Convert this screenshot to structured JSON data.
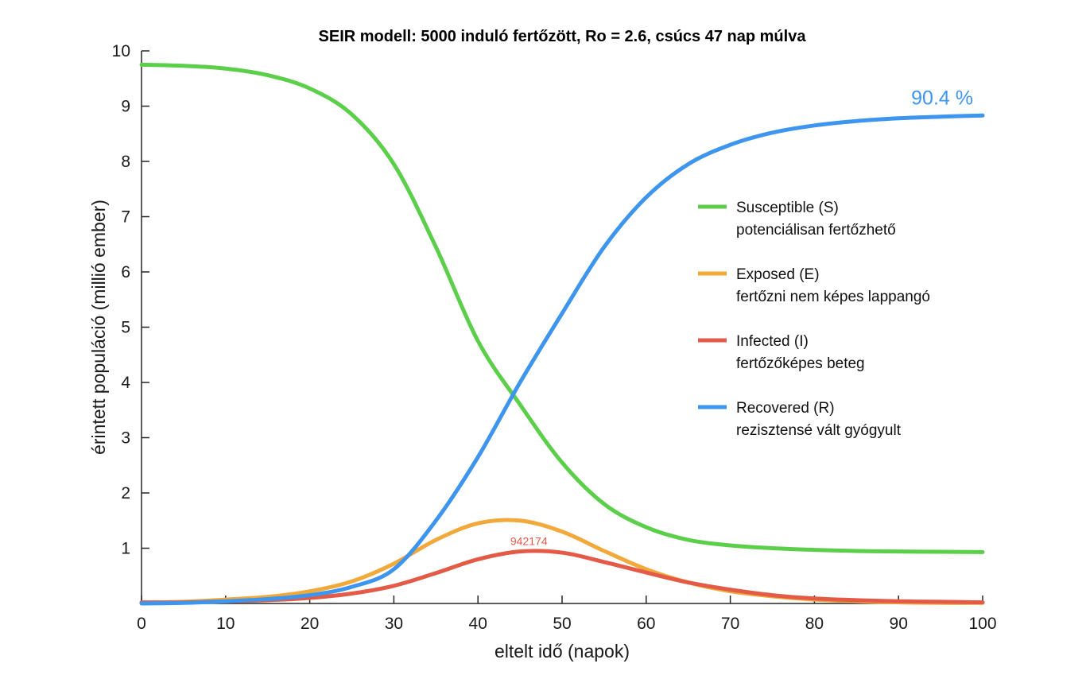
{
  "chart_data": {
    "type": "line",
    "title": "SEIR modell: 5000 induló fertőzött, Ro = 2.6, csúcs 47 nap múlva",
    "xlabel": "eltelt idő (napok)",
    "ylabel": "érintett populáció (millió ember)",
    "xlim": [
      0,
      100
    ],
    "ylim": [
      0,
      10
    ],
    "x_ticks": [
      "0",
      "10",
      "20",
      "30",
      "40",
      "50",
      "60",
      "70",
      "80",
      "90",
      "100"
    ],
    "y_ticks": [
      "1",
      "2",
      "3",
      "4",
      "5",
      "6",
      "7",
      "8",
      "9",
      "10"
    ],
    "grid": false,
    "legend_position": "right",
    "x": [
      0,
      5,
      10,
      15,
      20,
      25,
      30,
      35,
      40,
      45,
      50,
      55,
      60,
      65,
      70,
      75,
      80,
      85,
      90,
      95,
      100
    ],
    "series": [
      {
        "name": "Susceptible (S)",
        "description": "potenciálisan fertőzhető",
        "color": "#5ccf4a",
        "values": [
          9.75,
          9.73,
          9.68,
          9.56,
          9.32,
          8.85,
          7.95,
          6.45,
          4.75,
          3.6,
          2.55,
          1.8,
          1.38,
          1.15,
          1.05,
          1.0,
          0.97,
          0.95,
          0.94,
          0.935,
          0.93
        ]
      },
      {
        "name": "Exposed (E)",
        "description": "fertőzni nem képes lappangó",
        "color": "#f2a93b",
        "values": [
          0.01,
          0.03,
          0.07,
          0.12,
          0.22,
          0.4,
          0.72,
          1.15,
          1.45,
          1.5,
          1.3,
          0.95,
          0.62,
          0.38,
          0.22,
          0.13,
          0.07,
          0.04,
          0.02,
          0.01,
          0.01
        ]
      },
      {
        "name": "Infected (I)",
        "description": "fertőzőképes beteg",
        "color": "#e35b47",
        "values": [
          0.02,
          0.02,
          0.04,
          0.06,
          0.1,
          0.18,
          0.32,
          0.55,
          0.8,
          0.94,
          0.92,
          0.75,
          0.56,
          0.38,
          0.25,
          0.15,
          0.09,
          0.06,
          0.04,
          0.03,
          0.02
        ]
      },
      {
        "name": "Recovered (R)",
        "description": "rezisztensé vált gyógyult",
        "color": "#3e95ee",
        "values": [
          0.0,
          0.01,
          0.04,
          0.08,
          0.15,
          0.3,
          0.62,
          1.5,
          2.65,
          4.0,
          5.25,
          6.45,
          7.35,
          7.95,
          8.3,
          8.52,
          8.65,
          8.73,
          8.78,
          8.81,
          8.83
        ]
      }
    ],
    "annotations": [
      {
        "text": "942174",
        "x": 47,
        "y": 0.94,
        "color": "#e35b47"
      },
      {
        "text": "90.4 %",
        "x": 100,
        "y": 8.83,
        "color": "#3e95ee"
      }
    ]
  }
}
